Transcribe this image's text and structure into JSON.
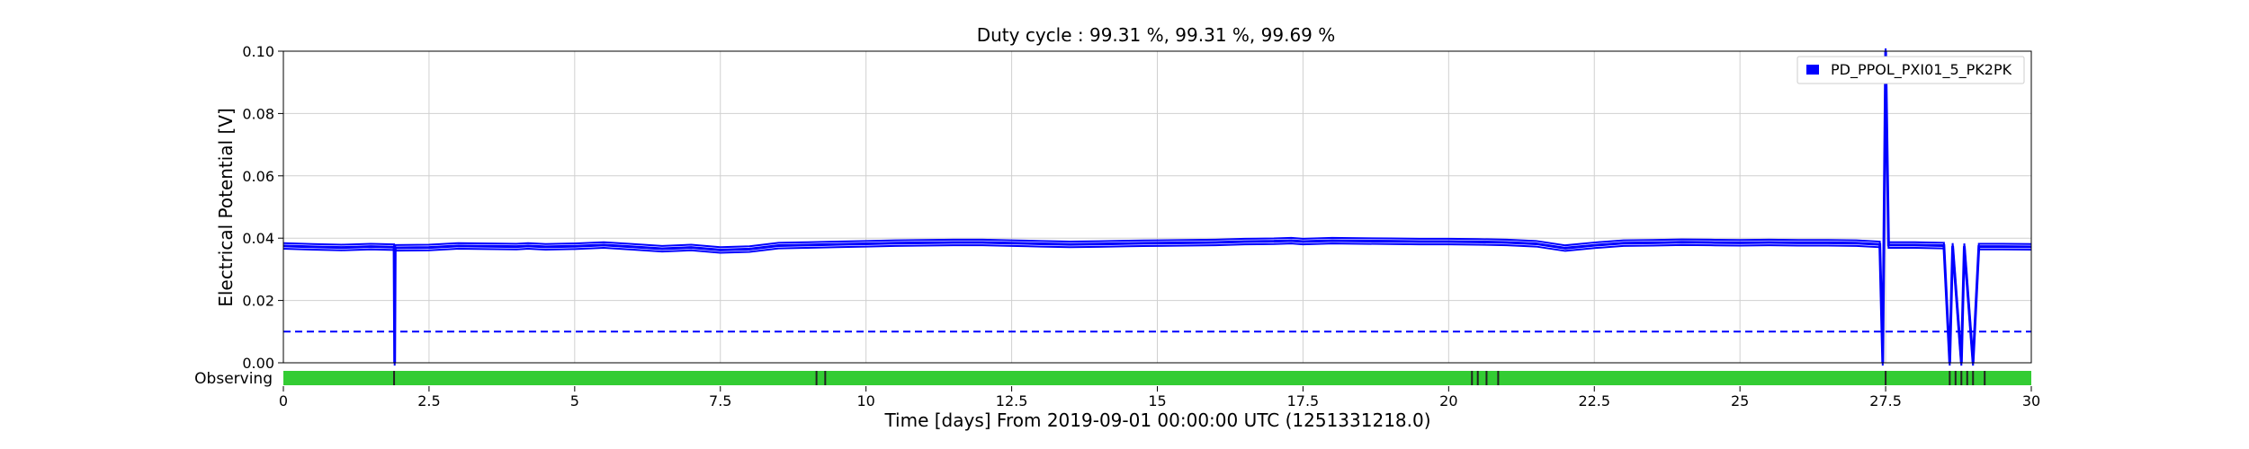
{
  "chart_data": {
    "type": "line",
    "title": "Duty cycle : 99.31 %, 99.31 %, 99.69 %",
    "xlabel": "Time [days] From 2019-09-01 00:00:00 UTC (1251331218.0)",
    "ylabel": "Electrical Potential [V]",
    "xlim": [
      0,
      30
    ],
    "ylim": [
      0,
      0.1
    ],
    "x_ticks": [
      0,
      2.5,
      5,
      7.5,
      10,
      12.5,
      15,
      17.5,
      20,
      22.5,
      25,
      27.5,
      30
    ],
    "x_tick_labels": [
      "0",
      "2.5",
      "5",
      "7.5",
      "10",
      "12.5",
      "15",
      "17.5",
      "20",
      "22.5",
      "25",
      "27.5",
      "30"
    ],
    "y_ticks": [
      0,
      0.02,
      0.04,
      0.06,
      0.08,
      0.1
    ],
    "y_tick_labels": [
      "0.00",
      "0.02",
      "0.04",
      "0.06",
      "0.08",
      "0.10"
    ],
    "grid": true,
    "legend_position": "top-right",
    "series": [
      {
        "name": "PD_PPOL_PXI01_5_PK2PK",
        "color": "#0000ff",
        "x": [
          0,
          0.5,
          1,
          1.5,
          1.9,
          1.91,
          1.92,
          2.5,
          3,
          3.5,
          4,
          4.2,
          4.5,
          5,
          5.5,
          6,
          6.5,
          7,
          7.5,
          8,
          8.5,
          9,
          9.5,
          10,
          10.5,
          11,
          11.5,
          12,
          12.5,
          13,
          13.5,
          14,
          14.5,
          15,
          15.5,
          16,
          16.5,
          17,
          17.3,
          17.5,
          18,
          18.5,
          19,
          19.5,
          20,
          20.5,
          21,
          21.5,
          22,
          22.5,
          23,
          23.5,
          24,
          24.5,
          25,
          25.5,
          26,
          26.5,
          27,
          27.4,
          27.45,
          27.5,
          27.55,
          28,
          28.5,
          28.6,
          28.65,
          28.8,
          28.85,
          29.0,
          29.1,
          29.5,
          30
        ],
        "values": [
          0.0375,
          0.0372,
          0.037,
          0.0373,
          0.0371,
          0.0,
          0.0369,
          0.037,
          0.0375,
          0.0374,
          0.0373,
          0.0375,
          0.0372,
          0.0374,
          0.0378,
          0.0372,
          0.0366,
          0.037,
          0.0362,
          0.0365,
          0.0376,
          0.0378,
          0.038,
          0.0382,
          0.0384,
          0.0385,
          0.0386,
          0.0386,
          0.0384,
          0.0382,
          0.038,
          0.0381,
          0.0383,
          0.0384,
          0.0385,
          0.0386,
          0.0389,
          0.039,
          0.0392,
          0.0389,
          0.0392,
          0.0391,
          0.039,
          0.0389,
          0.0389,
          0.0388,
          0.0386,
          0.0382,
          0.0368,
          0.0377,
          0.0384,
          0.0385,
          0.0387,
          0.0386,
          0.0385,
          0.0386,
          0.0385,
          0.0385,
          0.0384,
          0.038,
          0.0,
          0.1,
          0.0378,
          0.0378,
          0.0376,
          0.0,
          0.0375,
          0.0,
          0.0374,
          0.0,
          0.0373,
          0.0373,
          0.0372
        ]
      }
    ],
    "threshold": {
      "value": 0.01,
      "style": "dashed",
      "color": "#0000ff"
    },
    "state_bar": {
      "label": "Observing",
      "color_active": "#33cc33",
      "color_gap": "#222222",
      "gaps": [
        1.9,
        9.15,
        9.3,
        20.4,
        20.5,
        20.65,
        20.85,
        27.5,
        28.6,
        28.7,
        28.8,
        28.9,
        29.0,
        29.2
      ]
    }
  }
}
